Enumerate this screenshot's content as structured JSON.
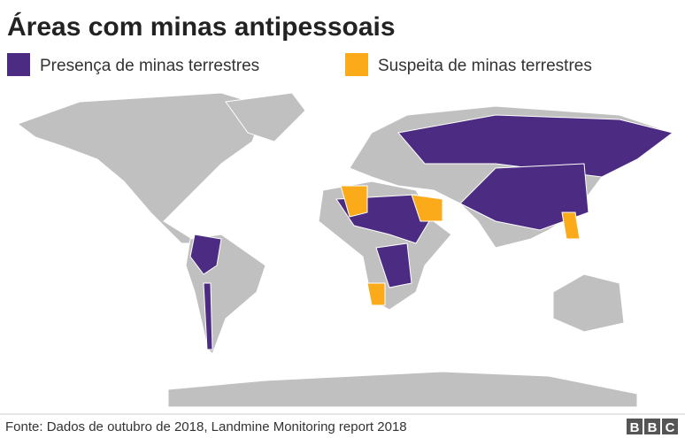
{
  "header": {
    "title": "Áreas com minas antipessoais"
  },
  "legend": [
    {
      "label": "Presença de minas terrestres",
      "color": "#4b2c82"
    },
    {
      "label": "Suspeita de minas terrestres",
      "color": "#fbaa19"
    }
  ],
  "footer": {
    "source": "Fonte: Dados de outubro de 2018, Landmine Monitoring report 2018",
    "logo": [
      "B",
      "B",
      "C"
    ]
  }
}
